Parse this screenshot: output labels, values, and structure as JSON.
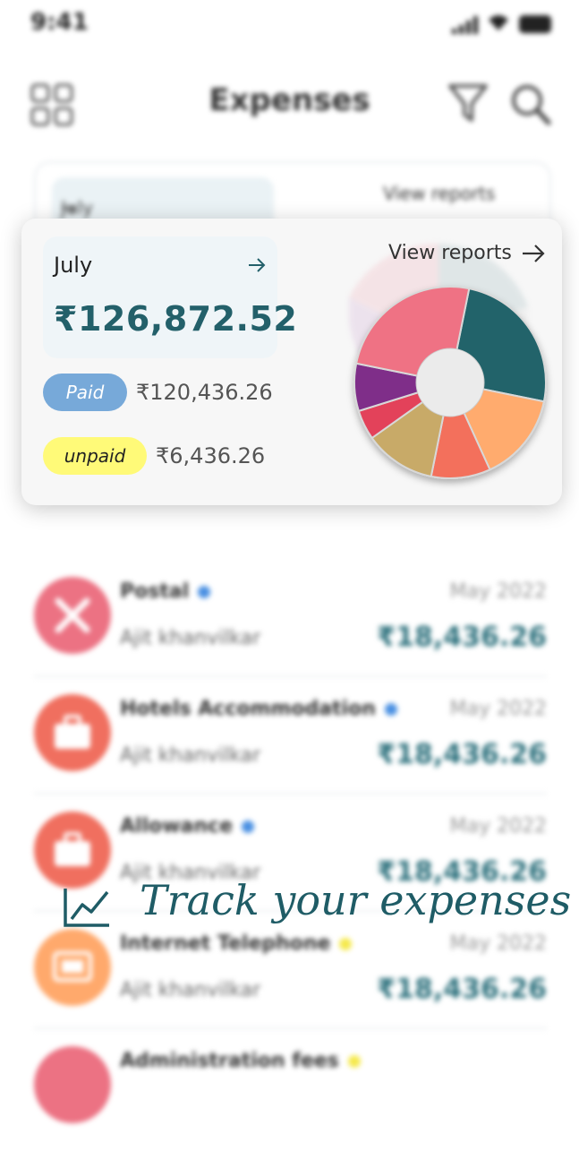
{
  "status_bar": {
    "time": "9:41"
  },
  "header": {
    "title": "Expenses"
  },
  "background_card": {
    "month": "July",
    "view_reports": "View reports"
  },
  "summary": {
    "month": "July",
    "total": "₹126,872.52",
    "paid_label": "Paid",
    "paid_amount": "₹120,436.26",
    "unpaid_label": "unpaid",
    "unpaid_amount": "₹6,436.26",
    "view_reports": "View reports"
  },
  "chart_data": {
    "type": "pie",
    "style": "donut",
    "slices": [
      {
        "color": "#22646a",
        "value": 25
      },
      {
        "color": "#ffab6e",
        "value": 15
      },
      {
        "color": "#f36f5c",
        "value": 10
      },
      {
        "color": "#c8aa68",
        "value": 12
      },
      {
        "color": "#e3435a",
        "value": 5
      },
      {
        "color": "#7f2f89",
        "value": 8
      },
      {
        "color": "#ef7284",
        "value": 25
      }
    ]
  },
  "expenses": [
    {
      "name": "Postal",
      "dot_color": "#4a90e2",
      "person": "Ajit khanvilkar",
      "date": "May 2022",
      "amount": "₹18,436.26",
      "avatar_color": "#ec7283",
      "icon": "tools-icon"
    },
    {
      "name": "Hotels Accommodation",
      "dot_color": "#4a90e2",
      "person": "Ajit khanvilkar",
      "date": "May 2022",
      "amount": "₹18,436.26",
      "avatar_color": "#f06f5f",
      "icon": "briefcase-icon"
    },
    {
      "name": "Allowance",
      "dot_color": "#4a90e2",
      "person": "Ajit khanvilkar",
      "date": "May 2022",
      "amount": "₹18,436.26",
      "avatar_color": "#f06f5f",
      "icon": "briefcase-icon"
    },
    {
      "name": "Internet Telephone",
      "dot_color": "#f5e94d",
      "person": "Ajit khanvilkar",
      "date": "May 2022",
      "amount": "₹18,436.26",
      "avatar_color": "#ffa96c",
      "icon": "monitor-icon"
    },
    {
      "name": "Administration fees",
      "dot_color": "#f5e94d",
      "person": "",
      "date": "",
      "amount": "",
      "avatar_color": "#ec7283",
      "icon": "tools-icon"
    }
  ],
  "tagline": {
    "text": "Track your expenses",
    "icon": "line-chart-icon"
  }
}
